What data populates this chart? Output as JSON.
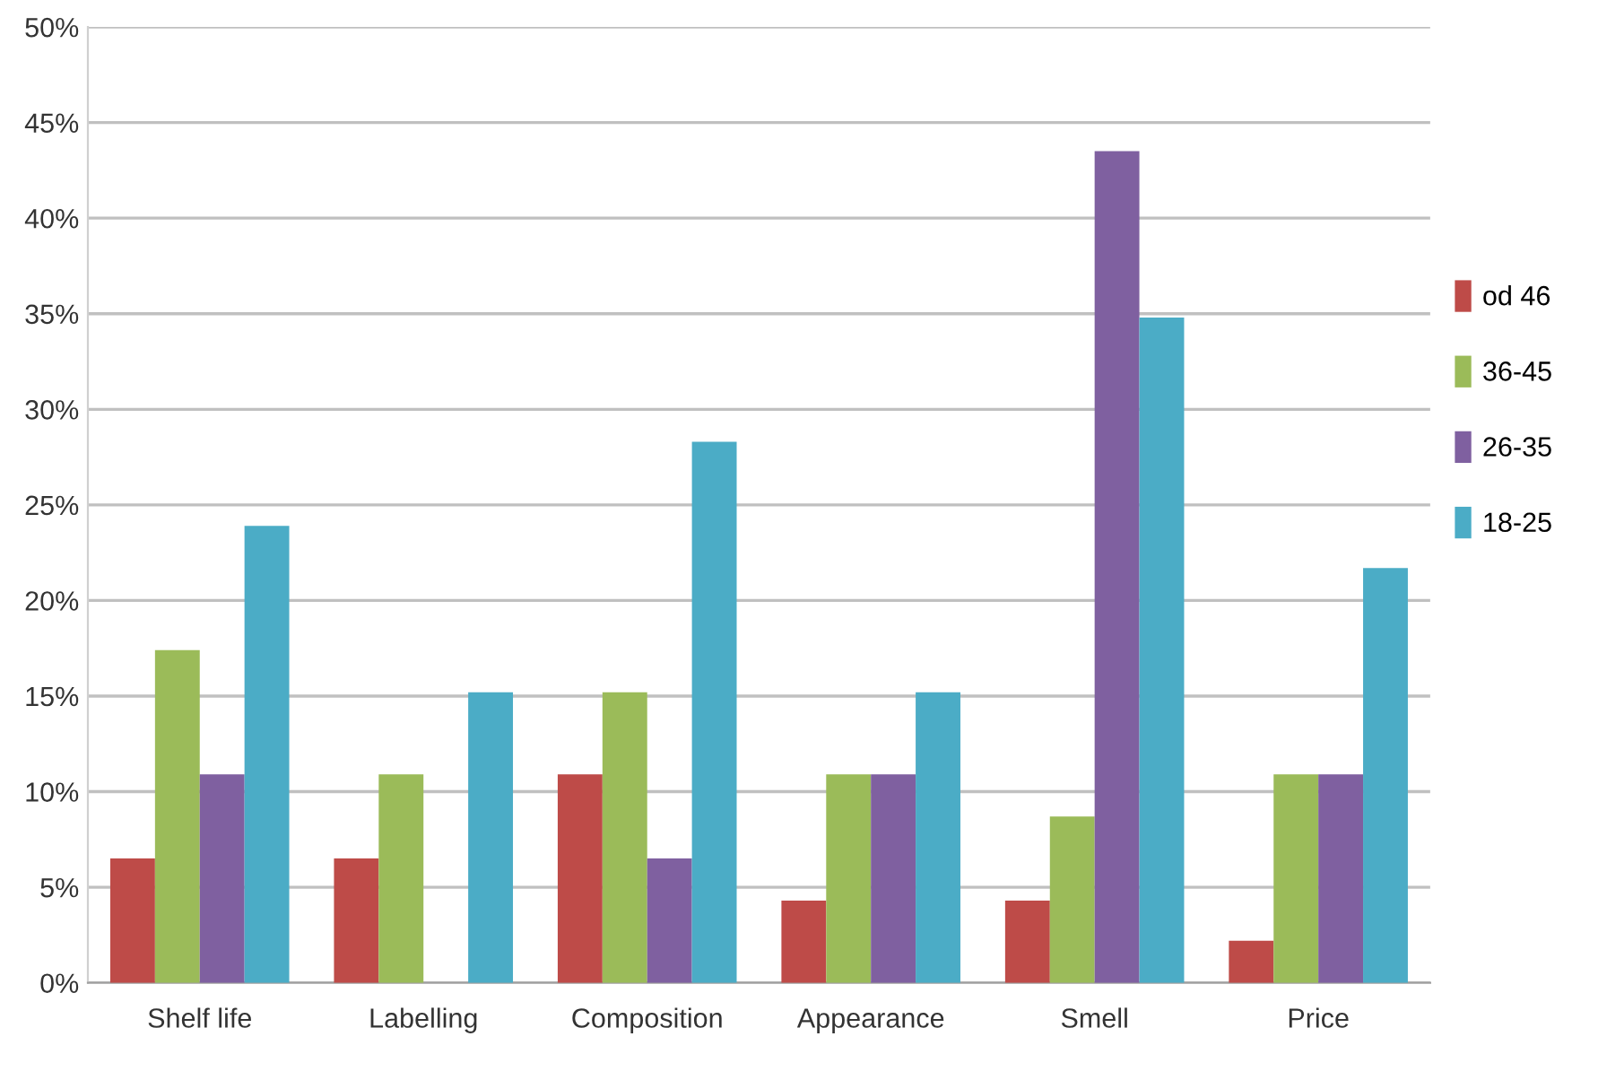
{
  "chart_data": {
    "type": "bar",
    "categories": [
      "Shelf life",
      "Labelling",
      "Composition",
      "Appearance",
      "Smell",
      "Price"
    ],
    "series": [
      {
        "name": "od 46",
        "color": "#be4b48",
        "values": [
          6.5,
          6.5,
          10.9,
          4.3,
          4.3,
          2.2
        ]
      },
      {
        "name": "36-45",
        "color": "#9bbb59",
        "values": [
          17.4,
          10.9,
          15.2,
          10.9,
          8.7,
          10.9
        ]
      },
      {
        "name": "26-35",
        "color": "#7f60a0",
        "values": [
          10.9,
          0,
          6.5,
          10.9,
          43.5,
          10.9
        ]
      },
      {
        "name": "18-25",
        "color": "#4bacc6",
        "values": [
          23.9,
          15.2,
          28.3,
          15.2,
          34.8,
          21.7
        ]
      }
    ],
    "ylim": [
      0,
      50
    ],
    "yticks": [
      {
        "value": 0,
        "label": "0%"
      },
      {
        "value": 5,
        "label": "5%"
      },
      {
        "value": 10,
        "label": "10%"
      },
      {
        "value": 15,
        "label": "15%"
      },
      {
        "value": 20,
        "label": "20%"
      },
      {
        "value": 25,
        "label": "25%"
      },
      {
        "value": 30,
        "label": "30%"
      },
      {
        "value": 35,
        "label": "35%"
      },
      {
        "value": 40,
        "label": "40%"
      },
      {
        "value": 45,
        "label": "45%"
      },
      {
        "value": 50,
        "label": "50%"
      }
    ],
    "grid": "y",
    "legend": "right"
  }
}
